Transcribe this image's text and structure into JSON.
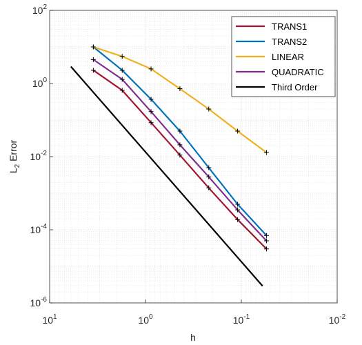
{
  "chart_data": {
    "type": "line",
    "title": "",
    "xlabel": "h",
    "ylabel_main": "L",
    "ylabel_sub": "2",
    "ylabel_rest": " Error",
    "xscale": "log",
    "yscale": "log",
    "x_reversed": true,
    "xlim": [
      10,
      0.01
    ],
    "ylim": [
      1e-06,
      100
    ],
    "grid": "major and minor, dotted",
    "legend_position": "top-right",
    "xticks": [
      {
        "base": "10",
        "exp": "1"
      },
      {
        "base": "10",
        "exp": "0"
      },
      {
        "base": "10",
        "exp": "-1"
      },
      {
        "base": "10",
        "exp": "-2"
      }
    ],
    "yticks": [
      {
        "base": "10",
        "exp": "2"
      },
      {
        "base": "10",
        "exp": "0"
      },
      {
        "base": "10",
        "exp": "-2"
      },
      {
        "base": "10",
        "exp": "-4"
      },
      {
        "base": "10",
        "exp": "-6"
      }
    ],
    "series": [
      {
        "name": "TRANS1",
        "color": "#A2142F",
        "marker": "+",
        "x": [
          3.5,
          1.75,
          0.875,
          0.4375,
          0.21875,
          0.109375,
          0.0546875
        ],
        "y": [
          2.3,
          0.65,
          0.085,
          0.011,
          0.0014,
          0.00019,
          3e-05
        ]
      },
      {
        "name": "TRANS2",
        "color": "#0072BD",
        "marker": "+",
        "x": [
          3.5,
          1.75,
          0.875,
          0.4375,
          0.21875,
          0.109375,
          0.0546875
        ],
        "y": [
          10,
          2.3,
          0.37,
          0.05,
          0.005,
          0.0005,
          7e-05
        ]
      },
      {
        "name": "LINEAR",
        "color": "#EDB120",
        "marker": "+",
        "x": [
          3.5,
          1.75,
          0.875,
          0.4375,
          0.21875,
          0.109375,
          0.0546875
        ],
        "y": [
          10,
          5.5,
          2.5,
          0.72,
          0.2,
          0.05,
          0.013
        ]
      },
      {
        "name": "QUADRATIC",
        "color": "#7E2F8E",
        "marker": "+",
        "x": [
          3.5,
          1.75,
          0.875,
          0.4375,
          0.21875,
          0.109375,
          0.0546875
        ],
        "y": [
          4.5,
          1.3,
          0.17,
          0.021,
          0.0028,
          0.00035,
          5e-05
        ]
      },
      {
        "name": "Third Order",
        "color": "#000000",
        "marker": "none",
        "x": [
          6.0,
          0.06
        ],
        "y": [
          2.9,
          2.9e-06
        ]
      }
    ]
  }
}
